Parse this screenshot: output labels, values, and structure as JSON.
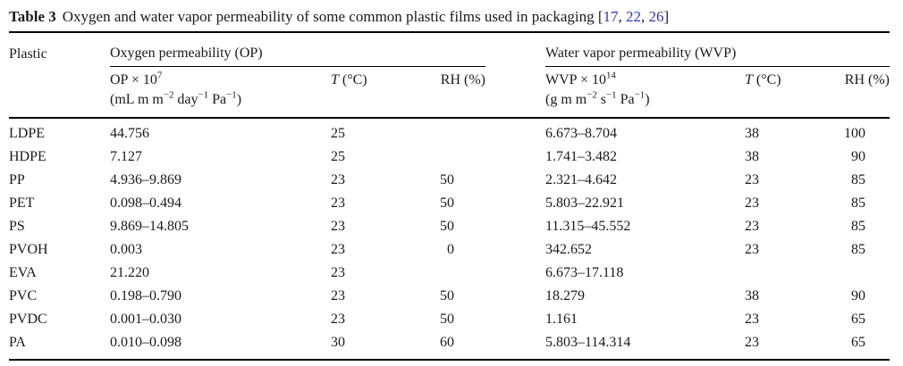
{
  "title": {
    "label": "Table 3",
    "text": "Oxygen and water vapor permeability of some common plastic films used in packaging",
    "open_bracket": "[",
    "separator": ", ",
    "close_bracket": "]",
    "citations": [
      "17",
      "22",
      "26"
    ]
  },
  "header": {
    "plastic": "Plastic",
    "op_group": "Oxygen permeability (OP)",
    "wvp_group": "Water vapor permeability (WVP)",
    "op_name_html": "OP × 10<sup>7</sup>",
    "op_units_html": "(mL m m<sup>−2</sup> day<sup>−1</sup> Pa<sup>−1</sup>)",
    "wvp_name_html": "WVP × 10<sup>14</sup>",
    "wvp_units_html": "(g m m<sup>−2</sup> s<sup>−1</sup> Pa<sup>−1</sup>)",
    "t_label": "T",
    "t_unit": " (°C)",
    "rh": "RH (%)"
  },
  "rows": [
    {
      "plastic": "LDPE",
      "op": "44.756",
      "op_t": "25",
      "op_rh": "",
      "wvp": "6.673–8.704",
      "wvp_t": "38",
      "wvp_rh": "100"
    },
    {
      "plastic": "HDPE",
      "op": "7.127",
      "op_t": "25",
      "op_rh": "",
      "wvp": "1.741–3.482",
      "wvp_t": "38",
      "wvp_rh": "90"
    },
    {
      "plastic": "PP",
      "op": "4.936–9.869",
      "op_t": "23",
      "op_rh": "50",
      "wvp": "2.321–4.642",
      "wvp_t": "23",
      "wvp_rh": "85"
    },
    {
      "plastic": "PET",
      "op": "0.098–0.494",
      "op_t": "23",
      "op_rh": "50",
      "wvp": "5.803–22.921",
      "wvp_t": "23",
      "wvp_rh": "85"
    },
    {
      "plastic": "PS",
      "op": "9.869–14.805",
      "op_t": "23",
      "op_rh": "50",
      "wvp": "11.315–45.552",
      "wvp_t": "23",
      "wvp_rh": "85"
    },
    {
      "plastic": "PVOH",
      "op": "0.003",
      "op_t": "23",
      "op_rh": "0",
      "wvp": "342.652",
      "wvp_t": "23",
      "wvp_rh": "85"
    },
    {
      "plastic": "EVA",
      "op": "21.220",
      "op_t": "23",
      "op_rh": "",
      "wvp": "6.673–17.118",
      "wvp_t": "",
      "wvp_rh": ""
    },
    {
      "plastic": "PVC",
      "op": "0.198–0.790",
      "op_t": "23",
      "op_rh": "50",
      "wvp": "18.279",
      "wvp_t": "38",
      "wvp_rh": "90"
    },
    {
      "plastic": "PVDC",
      "op": "0.001–0.030",
      "op_t": "23",
      "op_rh": "50",
      "wvp": "1.161",
      "wvp_t": "23",
      "wvp_rh": "65"
    },
    {
      "plastic": "PA",
      "op": "0.010–0.098",
      "op_t": "30",
      "op_rh": "60",
      "wvp": "5.803–114.314",
      "wvp_t": "23",
      "wvp_rh": "65"
    }
  ]
}
